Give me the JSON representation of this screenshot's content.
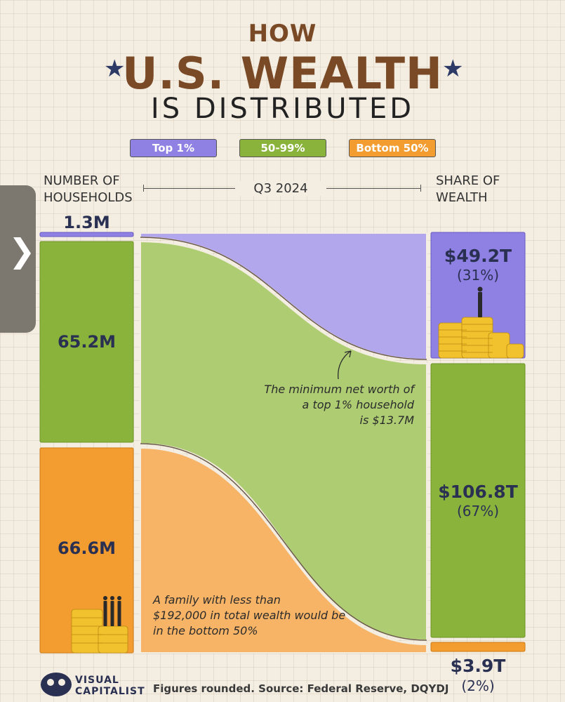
{
  "title": {
    "line1": "HOW",
    "line2": "U.S. WEALTH",
    "line3": "IS DISTRIBUTED",
    "star": "★"
  },
  "legend": [
    {
      "label": "Top 1%",
      "color": "#8f80e3"
    },
    {
      "label": "50-99%",
      "color": "#8ab33c"
    },
    {
      "label": "Bottom 50%",
      "color": "#f39c2f"
    }
  ],
  "headers": {
    "households": "NUMBER OF HOUSEHOLDS",
    "period": "Q3 2024",
    "wealth": "SHARE OF WEALTH"
  },
  "chart_data": {
    "type": "sankey",
    "period": "Q3 2024",
    "groups": [
      {
        "name": "Top 1%",
        "households_m": 1.3,
        "households_label": "1.3M",
        "wealth_t": 49.2,
        "wealth_label": "$49.2T",
        "share_label": "(31%)"
      },
      {
        "name": "50-99%",
        "households_m": 65.2,
        "households_label": "65.2M",
        "wealth_t": 106.8,
        "wealth_label": "$106.8T",
        "share_label": "(67%)"
      },
      {
        "name": "Bottom 50%",
        "households_m": 66.6,
        "households_label": "66.6M",
        "wealth_t": 3.9,
        "wealth_label": "$3.9T",
        "share_label": "(2%)"
      }
    ]
  },
  "annotations": {
    "top": [
      "The minimum net worth of",
      "a top 1% household",
      "is $13.7M"
    ],
    "bottom": [
      "A family with less than",
      "$192,000 in total wealth would be",
      "in the bottom 50%"
    ]
  },
  "footer": {
    "logo_line1": "VISUAL",
    "logo_line2": "CAPITALIST",
    "source": "Figures rounded. Source: Federal Reserve, DQYDJ"
  },
  "side_tab_icon": "chevron-right-icon",
  "side_tab_glyph": "❯"
}
